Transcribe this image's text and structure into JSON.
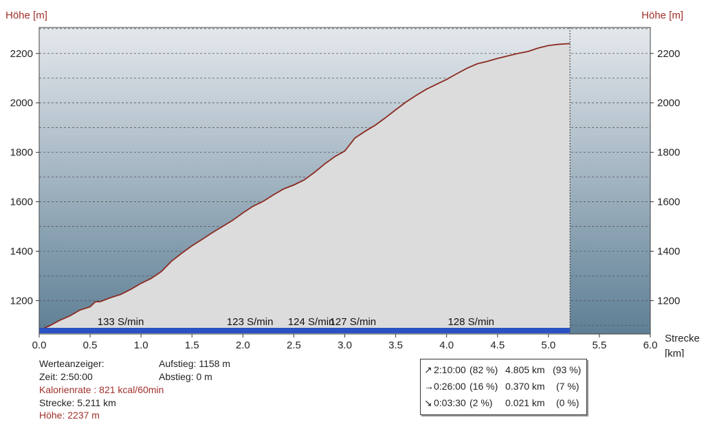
{
  "colors": {
    "profile_fill": "#dcdcdc",
    "profile_line": "#8b2a20",
    "bg_top": "#e4e8ec",
    "bg_bottom": "#5e7f95",
    "cadence_bar": "#2a52c4",
    "axis_label": "#a0302a"
  },
  "chart_data": {
    "type": "area",
    "xlabel": "Strecke\n[km]",
    "ylabel_left": "Höhe [m]",
    "ylabel_right": "Höhe [m]",
    "xlim": [
      0,
      6.0
    ],
    "ylim": [
      1065,
      2305
    ],
    "x_ticks": [
      "0.0",
      "0.5",
      "1.0",
      "1.5",
      "2.0",
      "2.5",
      "3.0",
      "3.5",
      "4.0",
      "4.5",
      "5.0",
      "5.5",
      "6.0"
    ],
    "y_ticks": [
      1200,
      1400,
      1600,
      1800,
      2000,
      2200
    ],
    "grid": "dashed horizontal every 100 m",
    "route_end_km": 5.211,
    "series": [
      {
        "x": [
          0.0,
          0.1,
          0.2,
          0.3,
          0.4,
          0.5,
          0.55,
          0.6,
          0.7,
          0.8,
          0.9,
          1.0,
          1.1,
          1.2,
          1.3,
          1.4,
          1.5,
          1.6,
          1.7,
          1.8,
          1.9,
          2.0,
          2.1,
          2.2,
          2.3,
          2.4,
          2.5,
          2.6,
          2.7,
          2.8,
          2.9,
          3.0,
          3.1,
          3.2,
          3.3,
          3.4,
          3.5,
          3.6,
          3.7,
          3.8,
          3.9,
          4.0,
          4.1,
          4.2,
          4.3,
          4.4,
          4.5,
          4.6,
          4.7,
          4.8,
          4.9,
          5.0,
          5.1,
          5.211
        ],
        "y": [
          1080,
          1098,
          1120,
          1138,
          1162,
          1175,
          1195,
          1196,
          1212,
          1225,
          1246,
          1270,
          1290,
          1318,
          1360,
          1392,
          1422,
          1448,
          1475,
          1500,
          1525,
          1555,
          1582,
          1602,
          1628,
          1652,
          1668,
          1688,
          1718,
          1752,
          1782,
          1805,
          1858,
          1885,
          1910,
          1940,
          1972,
          2003,
          2030,
          2055,
          2075,
          2095,
          2118,
          2140,
          2158,
          2168,
          2180,
          2190,
          2200,
          2208,
          2222,
          2232,
          2237,
          2240
        ]
      }
    ],
    "cadence_labels": [
      {
        "x": 0.8,
        "text": "133 S/min"
      },
      {
        "x": 2.07,
        "text": "123 S/min"
      },
      {
        "x": 2.67,
        "text": "124 S/min"
      },
      {
        "x": 3.08,
        "text": "127 S/min"
      },
      {
        "x": 4.24,
        "text": "128 S/min"
      }
    ]
  },
  "info": {
    "werteanzeiger": "Werteanzeiger:",
    "zeit": "Zeit: 2:50:00",
    "kalorienrate": "Kalorienrate : 821 kcal/60min",
    "strecke": "Strecke: 5.211 km",
    "hoehe": "Höhe: 2237 m",
    "aufstieg": "Aufstieg: 1158 m",
    "abstieg": "Abstieg: 0 m"
  },
  "stats": [
    {
      "icon": "↗",
      "time": "2:10:00",
      "pct_time": "(82 %)",
      "dist": "4.805 km",
      "pct_dist": "(93 %)"
    },
    {
      "icon": "→",
      "time": "0:26:00",
      "pct_time": "(16 %)",
      "dist": "0.370 km",
      "pct_dist": "(7 %)"
    },
    {
      "icon": "↘",
      "time": "0:03:30",
      "pct_time": "(2 %)",
      "dist": "0.021 km",
      "pct_dist": "(0 %)"
    }
  ]
}
